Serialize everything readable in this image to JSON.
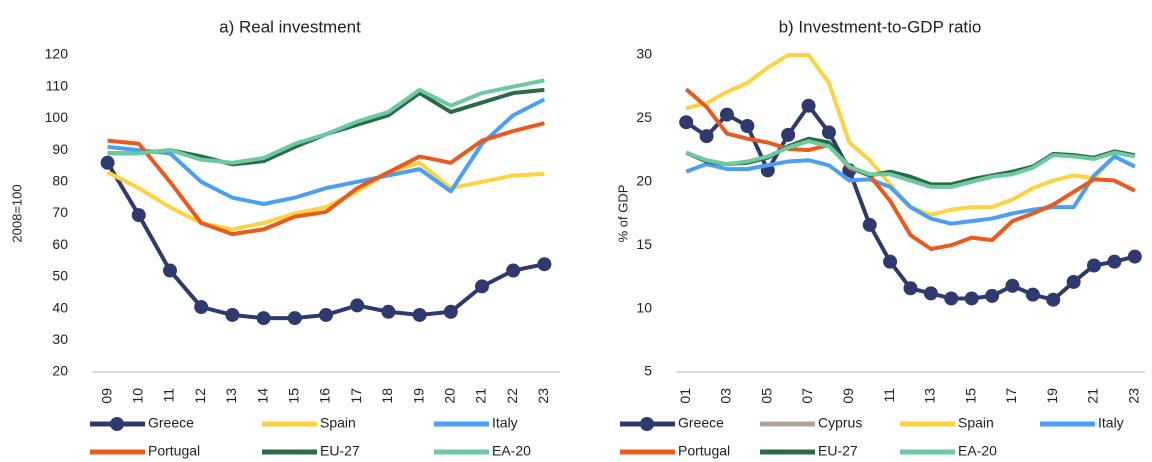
{
  "chart_data": [
    {
      "type": "line",
      "title": "a) Real investment",
      "y_label": "2008=100",
      "categories": [
        "09",
        "10",
        "11",
        "12",
        "13",
        "14",
        "15",
        "16",
        "17",
        "18",
        "19",
        "20",
        "21",
        "22",
        "23"
      ],
      "ylim": [
        20,
        120
      ],
      "yticks": [
        20,
        30,
        40,
        50,
        60,
        70,
        80,
        90,
        100,
        110,
        120
      ],
      "series": [
        {
          "name": "Greece",
          "color": "#2e3a6e",
          "marker": "circle",
          "values": [
            86,
            69.5,
            52,
            40.5,
            38,
            37,
            37,
            38,
            41,
            39,
            38,
            39,
            47,
            52,
            54
          ]
        },
        {
          "name": "Spain",
          "color": "#ffd23f",
          "values": [
            83,
            78,
            72,
            67,
            65,
            67,
            70,
            72,
            77,
            83,
            86,
            78,
            80,
            82,
            82.5
          ]
        },
        {
          "name": "Italy",
          "color": "#4a9ff5",
          "values": [
            91,
            90,
            89,
            80,
            75,
            73,
            75,
            78,
            80,
            82,
            84,
            77,
            92,
            101,
            106
          ]
        },
        {
          "name": "Portugal",
          "color": "#e85a1e",
          "values": [
            93,
            92,
            80,
            67,
            63.5,
            65,
            69,
            70.5,
            78,
            83,
            88,
            86,
            93,
            96,
            98.5
          ]
        },
        {
          "name": "EU-27",
          "color": "#2a6b47",
          "values": [
            89,
            89,
            90,
            88,
            85.5,
            86.5,
            91,
            95,
            98,
            101,
            108,
            102,
            105,
            108,
            109
          ]
        },
        {
          "name": "EA-20",
          "color": "#6dc9a0",
          "values": [
            89,
            89,
            90,
            87,
            86,
            87.5,
            92,
            95,
            99,
            102,
            109,
            104,
            108,
            110,
            112
          ]
        }
      ]
    },
    {
      "type": "line",
      "title": "b) Investment-to-GDP ratio",
      "y_label": "% of GDP",
      "categories": [
        "01",
        null,
        "03",
        null,
        "05",
        null,
        "07",
        null,
        "09",
        null,
        "11",
        null,
        "13",
        null,
        "15",
        null,
        "17",
        null,
        "19",
        null,
        "21",
        null,
        "23"
      ],
      "ylim": [
        5,
        30
      ],
      "yticks": [
        5,
        10,
        15,
        20,
        25,
        30
      ],
      "series": [
        {
          "name": "Greece",
          "color": "#2e3a6e",
          "marker": "circle",
          "values": [
            24.7,
            23.6,
            25.3,
            24.4,
            20.9,
            23.7,
            26,
            23.9,
            20.9,
            16.6,
            13.7,
            11.6,
            11.2,
            10.8,
            10.8,
            11,
            11.8,
            11.1,
            10.7,
            12.1,
            13.4,
            13.7,
            14.1
          ]
        },
        {
          "name": "Cyprus",
          "color": "#b0a59a",
          "values": [
            null,
            null,
            null,
            null,
            null,
            null,
            null,
            null,
            null,
            null,
            null,
            null,
            null,
            null,
            null,
            null,
            null,
            null,
            null,
            null,
            null,
            null,
            null
          ]
        },
        {
          "name": "Spain",
          "color": "#ffd23f",
          "values": [
            25.8,
            26.2,
            27.1,
            27.8,
            29,
            30,
            30,
            27.8,
            23.1,
            21.7,
            19.8,
            18,
            17.4,
            17.8,
            18,
            18,
            18.6,
            19.5,
            20.1,
            20.5,
            20.3,
            22,
            21.2
          ]
        },
        {
          "name": "Italy",
          "color": "#4a9ff5",
          "values": [
            20.8,
            21.4,
            21,
            21,
            21.3,
            21.6,
            21.7,
            21.3,
            20.1,
            20.2,
            19.6,
            18,
            17.1,
            16.7,
            16.9,
            17.1,
            17.5,
            17.8,
            18,
            18,
            20.5,
            22,
            21.2
          ]
        },
        {
          "name": "Portugal",
          "color": "#e85a1e",
          "values": [
            27.3,
            25.9,
            23.8,
            23.4,
            23.1,
            22.6,
            22.5,
            22.9,
            21.1,
            20.5,
            18.5,
            15.8,
            14.7,
            15,
            15.6,
            15.4,
            16.9,
            17.5,
            18.2,
            19.2,
            20.2,
            20.1,
            19.3
          ]
        },
        {
          "name": "EU-27",
          "color": "#2a6b47",
          "values": [
            22.3,
            21.6,
            21.4,
            21.5,
            21.9,
            22.8,
            23.4,
            23.1,
            21.2,
            20.5,
            20.8,
            20.4,
            19.8,
            19.8,
            20.2,
            20.5,
            20.8,
            21.2,
            22.2,
            22.1,
            21.9,
            22.4,
            22.1
          ]
        },
        {
          "name": "EA-20",
          "color": "#6dc9a0",
          "values": [
            22.3,
            21.7,
            21.4,
            21.6,
            22,
            22.7,
            23.2,
            22.8,
            21.2,
            20.6,
            20.6,
            20.1,
            19.6,
            19.6,
            20,
            20.4,
            20.6,
            21.1,
            22.1,
            22,
            21.8,
            22.3,
            22
          ]
        }
      ]
    }
  ]
}
